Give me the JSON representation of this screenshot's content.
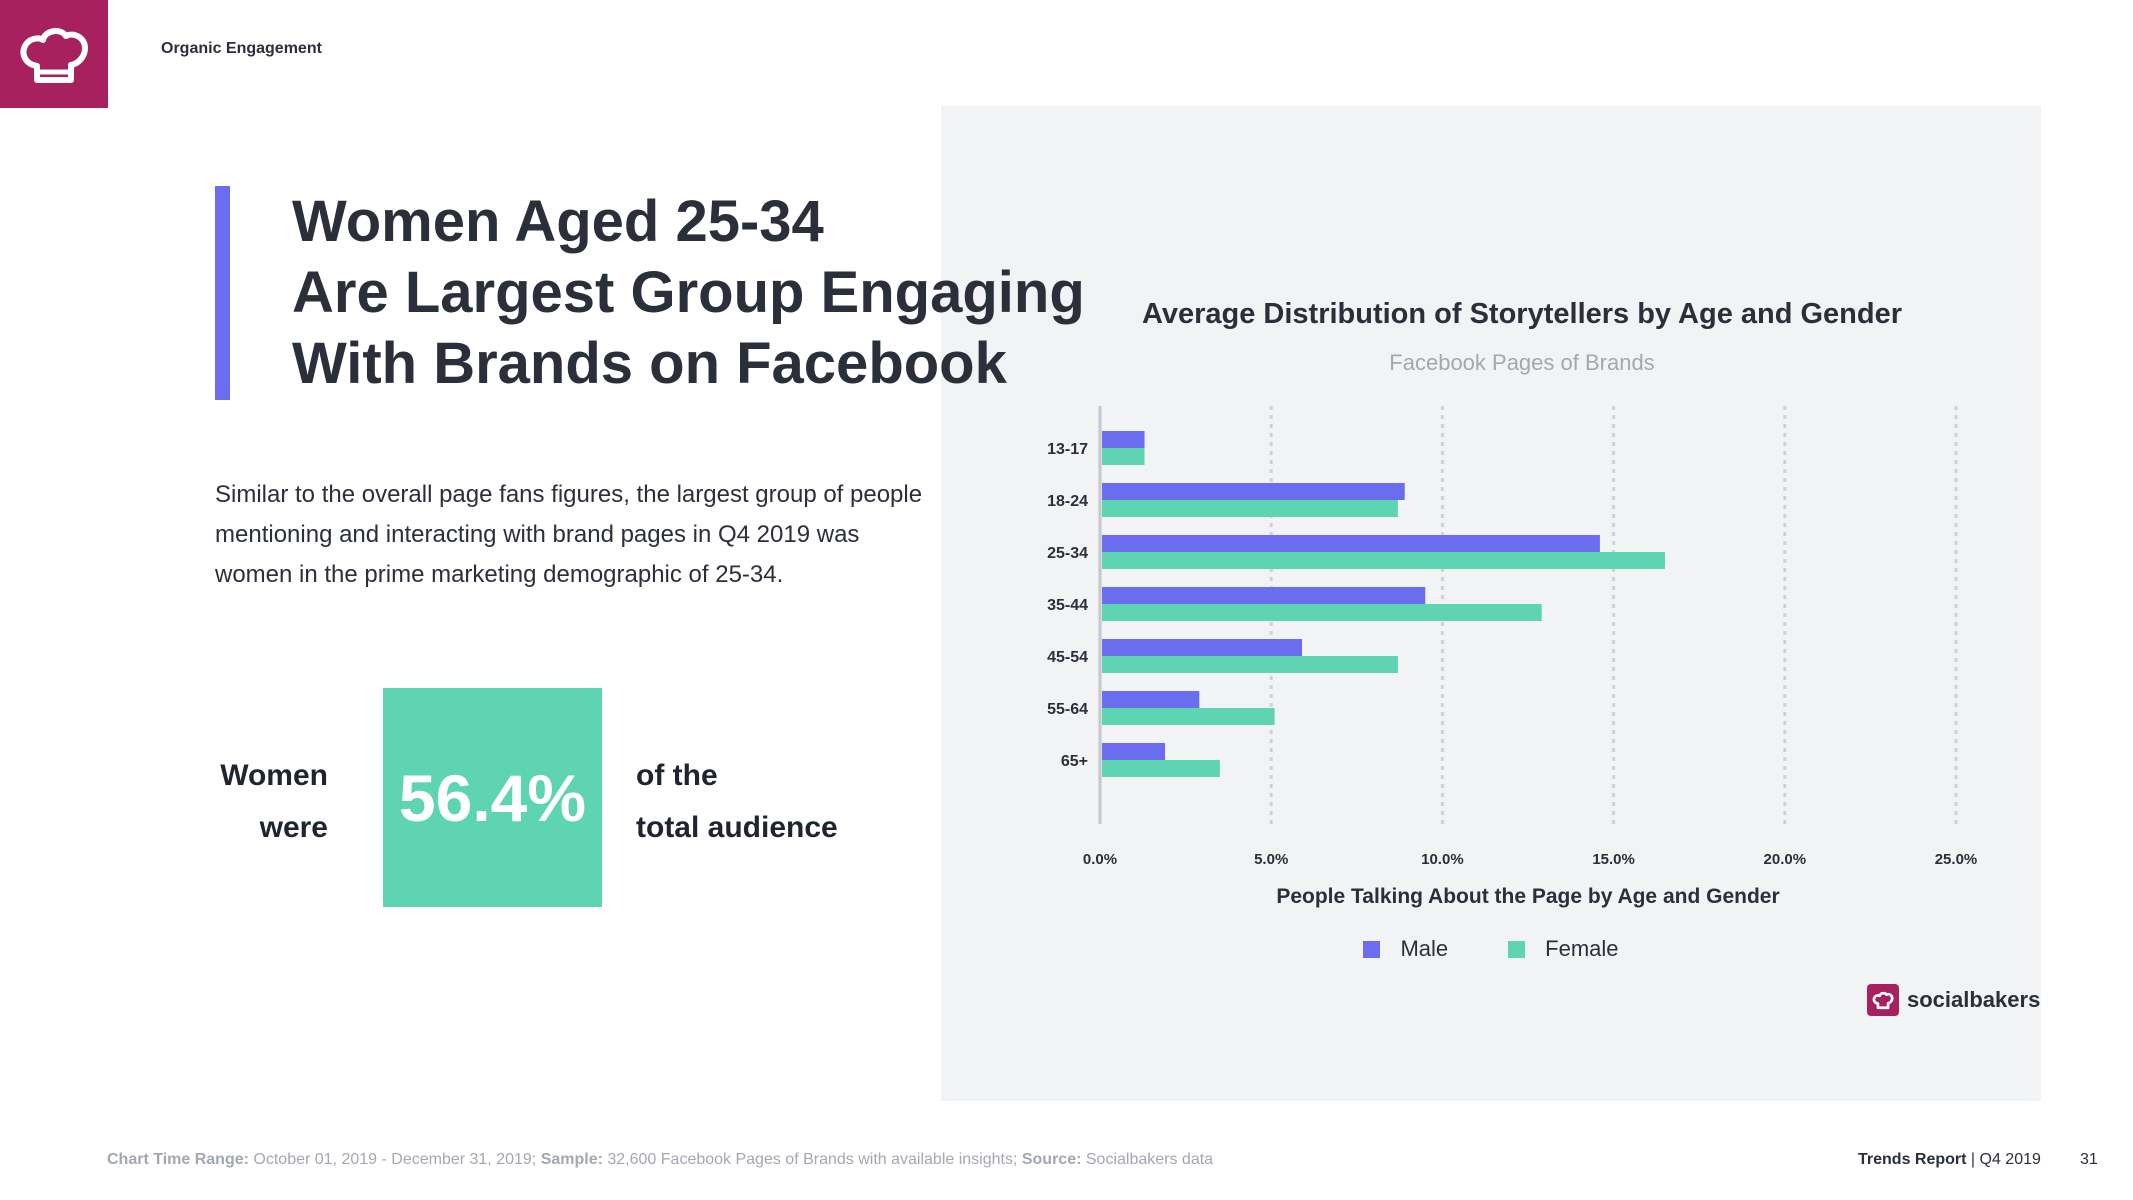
{
  "header": {
    "section_label": "Organic Engagement",
    "logo_icon": "chef-hat-icon"
  },
  "headline": {
    "line1": "Women Aged 25-34",
    "line2": "Are Largest Group Engaging",
    "line3": "With Brands on Facebook"
  },
  "body": {
    "paragraph": "Similar to the overall page fans figures, the largest group of people mentioning and interacting with brand pages in Q4 2019 was women in the prime marketing demographic of 25-34."
  },
  "stat": {
    "left_line1": "Women",
    "left_line2": "were",
    "value": "56.4%",
    "right_line1": "of the",
    "right_line2": "total audience"
  },
  "colors": {
    "accent_purple": "#6a6ded",
    "accent_green": "#5fd4b3",
    "brand_magenta": "#a7215e",
    "panel_gray": "#f2f3f5"
  },
  "chart_data": {
    "type": "bar",
    "orientation": "horizontal",
    "title": "Average Distribution of Storytellers by Age and Gender",
    "subtitle": "Facebook Pages of Brands",
    "xlabel": "People Talking About the Page by Age and Gender",
    "ylabel": "",
    "categories": [
      "13-17",
      "18-24",
      "25-34",
      "35-44",
      "45-54",
      "55-64",
      "65+"
    ],
    "series": [
      {
        "name": "Male",
        "color": "#6a6ded",
        "values": [
          1.3,
          8.9,
          14.6,
          9.5,
          5.9,
          2.9,
          1.9
        ]
      },
      {
        "name": "Female",
        "color": "#5fd4b3",
        "values": [
          1.3,
          8.7,
          16.5,
          12.9,
          8.7,
          5.1,
          3.5
        ]
      }
    ],
    "xlim": [
      0,
      25
    ],
    "xticks": [
      "0.0%",
      "5.0%",
      "10.0%",
      "15.0%",
      "20.0%",
      "25.0%"
    ],
    "grid": true,
    "legend": "bottom-center"
  },
  "branding": {
    "name": "socialbakers"
  },
  "footer": {
    "range_label": "Chart Time Range:",
    "range_value": " October  01, 2019 - December 31, 2019; ",
    "sample_label": "Sample:",
    "sample_value": " 32,600 Facebook Pages of Brands with available insights; ",
    "source_label": "Source:",
    "source_value": " Socialbakers data",
    "report_label": "Trends Report",
    "report_period": " | Q4 2019",
    "page_number": "31"
  }
}
